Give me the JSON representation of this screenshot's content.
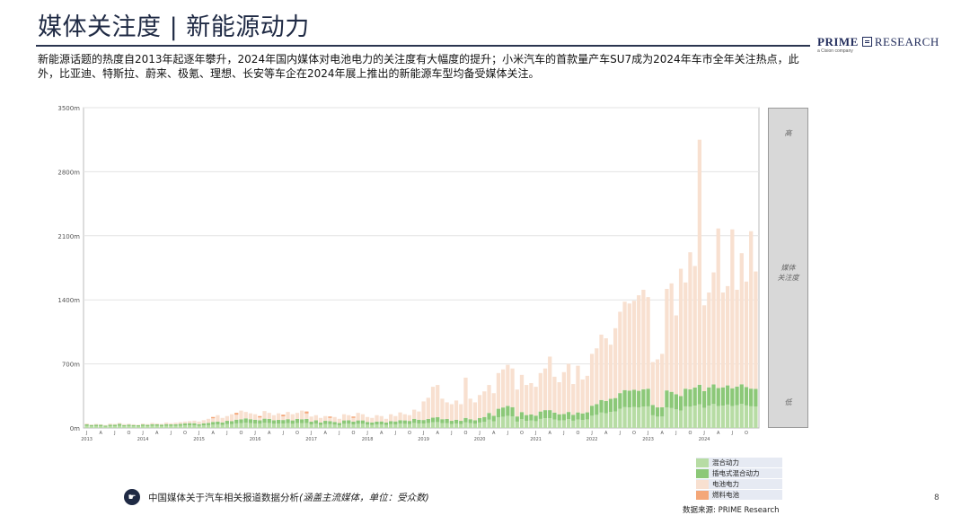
{
  "page": {
    "title": "媒体关注度 | 新能源动力",
    "brand_bold": "PRIME",
    "brand_rest": "RESEARCH",
    "brand_sub": "a Cision company",
    "description": "新能源话题的热度自2013年起逐年攀升，2024年国内媒体对电池电力的关注度有大幅度的提升；小米汽车的首款量产车SU7成为2024年车市全年关注热点，此外，比亚迪、特斯拉、蔚来、极氪、理想、长安等车企在2024年展上推出的新能源车型均备受媒体关注。",
    "footnote_main": "中国媒体关于汽车相关报道数据分析",
    "footnote_em": "(涵盖主流媒体，单位：受众数)",
    "source": "数据来源: PRIME Research",
    "page_number": "8",
    "panel_high": "高",
    "panel_mid_1": "媒体",
    "panel_mid_2": "关注度",
    "panel_low": "低"
  },
  "chart_data": {
    "type": "bar",
    "stacked": true,
    "y_ticks": [
      "0m",
      "700m",
      "1400m",
      "2100m",
      "2800m",
      "3500m"
    ],
    "y_tick_values": [
      0,
      700,
      1400,
      2100,
      2800,
      3500
    ],
    "ylim": [
      0,
      3500
    ],
    "unit": "m",
    "grid": true,
    "legend_position": "bottom-right",
    "x_years": [
      "2013",
      "2014",
      "2015",
      "2016",
      "2017",
      "2018",
      "2019",
      "2020",
      "2021",
      "2022",
      "2023",
      "2024"
    ],
    "x_month_labels": [
      "J",
      "A",
      "J",
      "O"
    ],
    "series": [
      {
        "name": "混合动力",
        "color": "#b7dca4"
      },
      {
        "name": "插电式混合动力",
        "color": "#8cc878"
      },
      {
        "name": "电池电力",
        "color": "#f8e0d0"
      },
      {
        "name": "燃料电池",
        "color": "#f4a779"
      }
    ],
    "totals": [
      50,
      38,
      45,
      40,
      32,
      48,
      44,
      55,
      42,
      46,
      40,
      35,
      48,
      42,
      55,
      50,
      45,
      60,
      52,
      58,
      64,
      70,
      75,
      80,
      70,
      85,
      100,
      120,
      140,
      110,
      130,
      150,
      165,
      190,
      175,
      160,
      150,
      130,
      185,
      165,
      140,
      160,
      145,
      175,
      150,
      165,
      190,
      180,
      125,
      140,
      110,
      130,
      125,
      120,
      100,
      150,
      140,
      125,
      165,
      150,
      120,
      110,
      140,
      130,
      100,
      150,
      130,
      170,
      150,
      140,
      200,
      180,
      290,
      330,
      450,
      470,
      320,
      280,
      260,
      300,
      260,
      550,
      320,
      280,
      360,
      400,
      470,
      380,
      600,
      640,
      690,
      650,
      420,
      580,
      470,
      490,
      450,
      600,
      650,
      780,
      560,
      500,
      610,
      700,
      480,
      680,
      530,
      570,
      810,
      870,
      1020,
      980,
      910,
      1090,
      1270,
      1380,
      1360,
      1390,
      1450,
      1510,
      1430,
      720,
      750,
      810,
      1520,
      1580,
      1230,
      1740,
      1590,
      1920,
      1770,
      3150,
      1340,
      1480,
      1700,
      2180,
      1480,
      1550,
      2170,
      1510,
      1910,
      1600,
      2150,
      1710
    ],
    "green_fraction": [
      0.8,
      0.85,
      0.8,
      0.85,
      0.8,
      0.75,
      0.8,
      0.8,
      0.75,
      0.8,
      0.8,
      0.85,
      0.8,
      0.8,
      0.75,
      0.8,
      0.8,
      0.7,
      0.75,
      0.7,
      0.7,
      0.72,
      0.7,
      0.65,
      0.6,
      0.6,
      0.55,
      0.55,
      0.5,
      0.55,
      0.6,
      0.5,
      0.55,
      0.5,
      0.6,
      0.6,
      0.6,
      0.65,
      0.55,
      0.6,
      0.6,
      0.55,
      0.6,
      0.55,
      0.55,
      0.6,
      0.5,
      0.55,
      0.55,
      0.6,
      0.55,
      0.6,
      0.6,
      0.55,
      0.55,
      0.55,
      0.6,
      0.55,
      0.5,
      0.55,
      0.55,
      0.55,
      0.5,
      0.55,
      0.6,
      0.5,
      0.55,
      0.5,
      0.55,
      0.55,
      0.5,
      0.5,
      0.3,
      0.3,
      0.25,
      0.25,
      0.3,
      0.35,
      0.3,
      0.3,
      0.3,
      0.2,
      0.3,
      0.3,
      0.3,
      0.3,
      0.35,
      0.35,
      0.35,
      0.35,
      0.35,
      0.35,
      0.3,
      0.3,
      0.3,
      0.3,
      0.3,
      0.3,
      0.3,
      0.25,
      0.3,
      0.3,
      0.25,
      0.25,
      0.3,
      0.25,
      0.3,
      0.3,
      0.3,
      0.3,
      0.3,
      0.3,
      0.35,
      0.3,
      0.3,
      0.3,
      0.3,
      0.3,
      0.28,
      0.28,
      0.3,
      0.35,
      0.3,
      0.28,
      0.27,
      0.25,
      0.3,
      0.2,
      0.27,
      0.22,
      0.25,
      0.15,
      0.3,
      0.3,
      0.28,
      0.2,
      0.3,
      0.3,
      0.2,
      0.3,
      0.25,
      0.28,
      0.2,
      0.25
    ]
  }
}
